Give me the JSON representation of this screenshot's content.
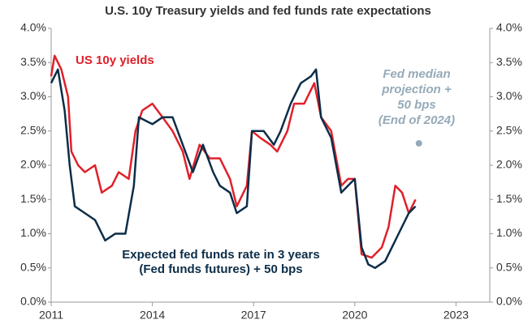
{
  "chart_data": {
    "type": "line",
    "title": "U.S. 10y Treasury yields and fed funds rate expectations",
    "xlim": [
      2011,
      2024
    ],
    "xticks": [
      2011,
      2014,
      2017,
      2020,
      2023
    ],
    "ylim": [
      0,
      4
    ],
    "yticks": [
      {
        "value": 0,
        "label": "0.0%"
      },
      {
        "value": 0.5,
        "label": "0.5%"
      },
      {
        "value": 1,
        "label": "1.0%"
      },
      {
        "value": 1.5,
        "label": "1.5%"
      },
      {
        "value": 2,
        "label": "2.0%"
      },
      {
        "value": 2.5,
        "label": "2.5%"
      },
      {
        "value": 3,
        "label": "3.0%"
      },
      {
        "value": 3.5,
        "label": "3.5%"
      },
      {
        "value": 4,
        "label": "4.0%"
      }
    ],
    "y2lim": [
      0,
      4
    ],
    "y2ticks": [
      {
        "value": 0,
        "label": "0.0%"
      },
      {
        "value": 0.5,
        "label": "0.5%"
      },
      {
        "value": 1,
        "label": "1.0%"
      },
      {
        "value": 1.5,
        "label": "1.5%"
      },
      {
        "value": 2,
        "label": "2.0%"
      },
      {
        "value": 2.5,
        "label": "2.5%"
      },
      {
        "value": 3,
        "label": "3.0%"
      },
      {
        "value": 3.5,
        "label": "3.5%"
      },
      {
        "value": 4,
        "label": "4.0%"
      }
    ],
    "series": [
      {
        "name": "US 10y yields",
        "color": "#e0202a",
        "x": [
          2011.0,
          2011.1,
          2011.3,
          2011.5,
          2011.6,
          2011.8,
          2012.0,
          2012.3,
          2012.5,
          2012.8,
          2013.0,
          2013.3,
          2013.5,
          2013.7,
          2014.0,
          2014.3,
          2014.6,
          2014.9,
          2015.1,
          2015.4,
          2015.7,
          2016.0,
          2016.3,
          2016.5,
          2016.8,
          2016.95,
          2017.2,
          2017.5,
          2017.7,
          2018.0,
          2018.2,
          2018.5,
          2018.8,
          2019.0,
          2019.3,
          2019.6,
          2019.8,
          2020.0,
          2020.2,
          2020.5,
          2020.8,
          2021.0,
          2021.2,
          2021.4,
          2021.6,
          2021.8
        ],
        "values": [
          3.3,
          3.6,
          3.4,
          3.0,
          2.2,
          2.0,
          1.9,
          2.0,
          1.6,
          1.7,
          1.9,
          1.8,
          2.5,
          2.8,
          2.9,
          2.7,
          2.5,
          2.2,
          1.8,
          2.3,
          2.1,
          2.1,
          1.8,
          1.4,
          1.7,
          2.5,
          2.4,
          2.3,
          2.2,
          2.5,
          2.9,
          2.9,
          3.2,
          2.7,
          2.5,
          1.7,
          1.8,
          1.8,
          0.7,
          0.65,
          0.8,
          1.1,
          1.7,
          1.6,
          1.3,
          1.5
        ]
      },
      {
        "name": "Expected fed funds rate in 3 years (Fed funds futures) + 50 bps",
        "color": "#0c2d48",
        "x": [
          2011.0,
          2011.2,
          2011.4,
          2011.55,
          2011.7,
          2012.0,
          2012.3,
          2012.6,
          2012.9,
          2013.2,
          2013.45,
          2013.6,
          2014.0,
          2014.3,
          2014.6,
          2014.9,
          2015.2,
          2015.5,
          2015.8,
          2016.0,
          2016.3,
          2016.5,
          2016.8,
          2016.95,
          2017.3,
          2017.6,
          2017.8,
          2018.1,
          2018.4,
          2018.7,
          2018.85,
          2019.0,
          2019.3,
          2019.6,
          2019.8,
          2020.0,
          2020.2,
          2020.4,
          2020.6,
          2020.9,
          2021.1,
          2021.3,
          2021.6,
          2021.8
        ],
        "values": [
          3.2,
          3.4,
          2.8,
          2.0,
          1.4,
          1.3,
          1.2,
          0.9,
          1.0,
          1.0,
          1.7,
          2.7,
          2.6,
          2.7,
          2.7,
          2.3,
          1.9,
          2.3,
          1.9,
          1.7,
          1.6,
          1.3,
          1.4,
          2.5,
          2.5,
          2.3,
          2.5,
          2.9,
          3.2,
          3.3,
          3.4,
          2.7,
          2.4,
          1.6,
          1.7,
          1.8,
          0.8,
          0.55,
          0.5,
          0.6,
          0.8,
          1.0,
          1.3,
          1.4
        ]
      }
    ],
    "points": [
      {
        "name": "Fed median projection + 50 bps (End of 2024)",
        "color": "#95aab8",
        "x": 2021.9,
        "y": 2.32
      }
    ],
    "annotations": {
      "red": "US 10y yields",
      "navy": [
        "Expected fed funds rate in 3 years",
        "(Fed funds futures) + 50 bps"
      ],
      "gray": [
        "Fed median",
        "projection +",
        "50 bps",
        "(End of 2024)"
      ]
    }
  }
}
